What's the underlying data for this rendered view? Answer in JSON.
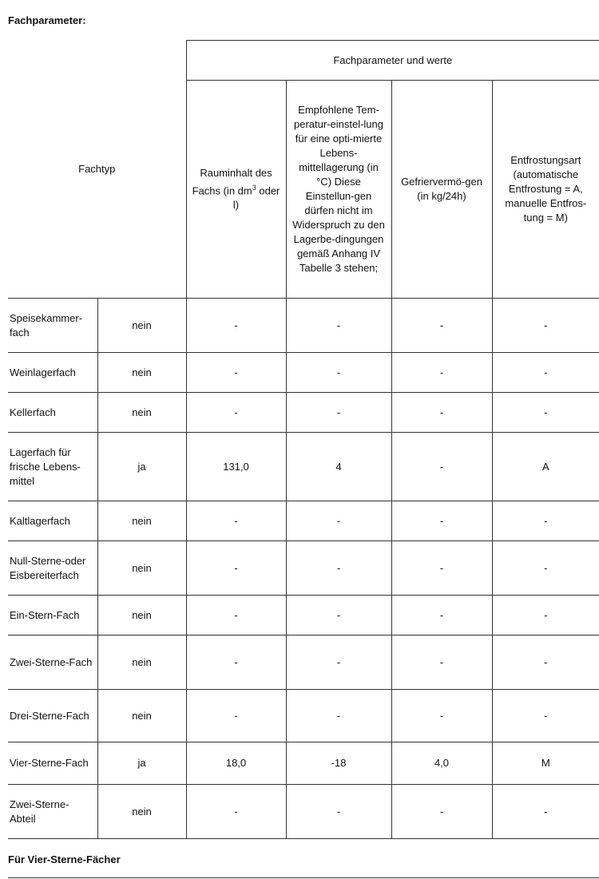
{
  "heading": "Fachparameter:",
  "header": {
    "fachtyp": "Fachtyp",
    "group": "Fachparameter und werte",
    "columns": [
      {
        "pre": "Rauminhalt des Fachs (in dm",
        "sup": "3",
        "post": " oder l)"
      },
      {
        "text": "Empfohlene Tem-peratur-einstel-lung für eine opti-mierte Lebens-mittellagerung (in °C) Diese Einstellun-gen dürfen nicht im Widerspruch zu den Lagerbe-dingungen gemäß Anhang IV Tabelle 3 stehen;"
      },
      {
        "text": "Gefriervermö-gen (in kg/24h)"
      },
      {
        "text": "Entfrostungsart (automatische Entfrostung = A, manuelle Entfros-tung = M)"
      }
    ]
  },
  "rows": [
    {
      "type": "Speisekammer-fach",
      "present": "nein",
      "volume": "-",
      "temp": "-",
      "freeze": "-",
      "defrost": "-"
    },
    {
      "type": "Weinlagerfach",
      "present": "nein",
      "volume": "-",
      "temp": "-",
      "freeze": "-",
      "defrost": "-"
    },
    {
      "type": "Kellerfach",
      "present": "nein",
      "volume": "-",
      "temp": "-",
      "freeze": "-",
      "defrost": "-"
    },
    {
      "type": "Lagerfach für frische Lebens-mittel",
      "present": "ja",
      "volume": "131,0",
      "temp": "4",
      "freeze": "-",
      "defrost": "A"
    },
    {
      "type": "Kaltlagerfach",
      "present": "nein",
      "volume": "-",
      "temp": "-",
      "freeze": "-",
      "defrost": "-"
    },
    {
      "type": "Null-Sterne-oder Eisbereiterfach",
      "present": "nein",
      "volume": "-",
      "temp": "-",
      "freeze": "-",
      "defrost": "-"
    },
    {
      "type": "Ein-Stern-Fach",
      "present": "nein",
      "volume": "-",
      "temp": "-",
      "freeze": "-",
      "defrost": "-"
    },
    {
      "type": "Zwei-Sterne-Fach",
      "present": "nein",
      "volume": "-",
      "temp": "-",
      "freeze": "-",
      "defrost": "-"
    },
    {
      "type": "Drei-Sterne-Fach",
      "present": "nein",
      "volume": "-",
      "temp": "-",
      "freeze": "-",
      "defrost": "-"
    },
    {
      "type": "Vier-Sterne-Fach",
      "present": "ja",
      "volume": "18,0",
      "temp": "-18",
      "freeze": "4,0",
      "defrost": "M"
    },
    {
      "type": "Zwei-Sterne-Abteil",
      "present": "nein",
      "volume": "-",
      "temp": "-",
      "freeze": "-",
      "defrost": "-"
    }
  ],
  "footer_heading": "Für Vier-Sterne-Fächer"
}
